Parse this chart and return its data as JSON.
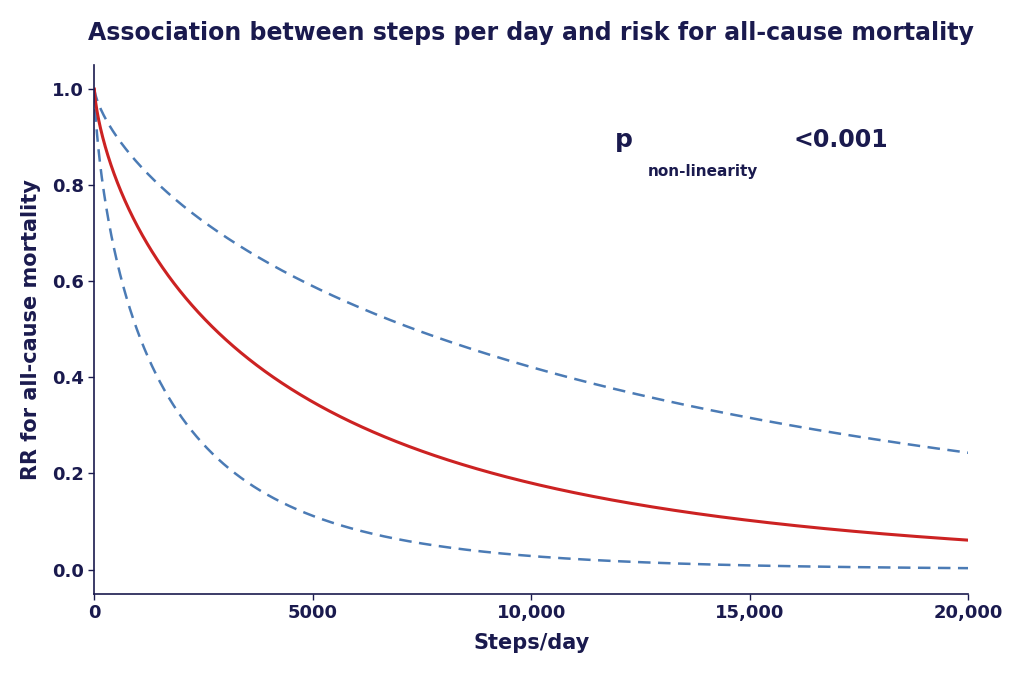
{
  "title": "Association between steps per day and risk for all-cause mortality",
  "xlabel": "Steps/day",
  "ylabel": "RR for all-cause mortality",
  "xlim": [
    0,
    20000
  ],
  "ylim": [
    -0.05,
    1.05
  ],
  "x_ticks": [
    0,
    5000,
    10000,
    15000,
    20000
  ],
  "x_tick_labels": [
    "0",
    "5000",
    "10,000",
    "15,000",
    "20,000"
  ],
  "y_ticks": [
    0.0,
    0.2,
    0.4,
    0.6,
    0.8,
    1.0
  ],
  "y_tick_labels": [
    "0.0",
    "0.2",
    "0.4",
    "0.6",
    "0.8",
    "1.0"
  ],
  "curve_color": "#CC2222",
  "ci_color": "#4B7BB5",
  "background_color": "#FFFFFF",
  "title_color": "#1a1a4e",
  "axis_color": "#1a1a4e",
  "annotation_color": "#1a1a4e",
  "title_fontsize": 17,
  "label_fontsize": 15,
  "tick_fontsize": 13,
  "annotation_fontsize_p": 18,
  "annotation_fontsize_sub": 11,
  "annotation_fontsize_val": 17,
  "a_main": 0.002645,
  "b_main": 0.703,
  "a_upper": 0.00125,
  "b_upper": 0.71,
  "a_lower": 0.0055,
  "b_lower": 0.703
}
